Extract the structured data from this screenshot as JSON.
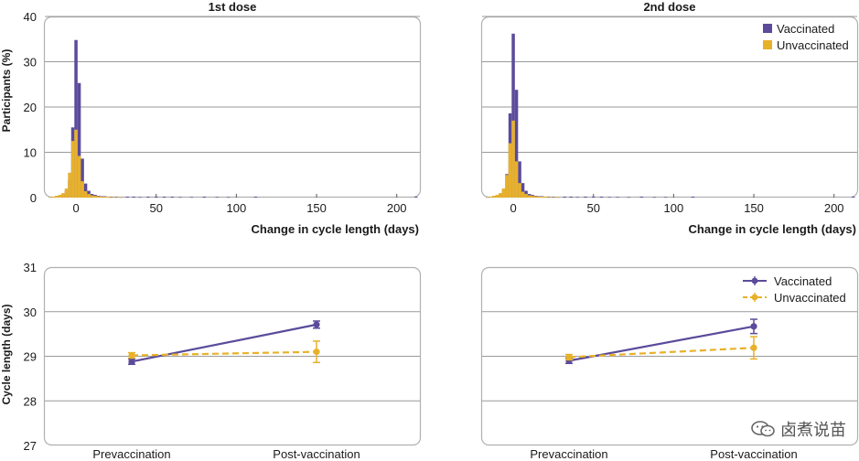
{
  "colors": {
    "vaccinated": "#5b4b9a",
    "unvaccinated": "#e8b12a",
    "grid": "#9a9a9a",
    "frame": "#b0b0b0"
  },
  "watermark": {
    "text": "卤煮说苗",
    "icon": "wechat-icon"
  },
  "chart_data": [
    {
      "type": "bar",
      "title": "1st dose",
      "xlabel": "Change in cycle length (days)",
      "ylabel": "Participants (%)",
      "xlim": [
        -20,
        215
      ],
      "ylim": [
        0,
        40
      ],
      "xticks": [
        0,
        50,
        100,
        150,
        200
      ],
      "yticks": [
        0,
        10,
        20,
        30,
        40
      ],
      "legend": "none",
      "grid": true,
      "bin_width": 2,
      "series": [
        {
          "name": "Vaccinated",
          "x": [
            -16,
            -14,
            -12,
            -10,
            -8,
            -6,
            -4,
            -2,
            0,
            2,
            4,
            6,
            8,
            10,
            12,
            14,
            16,
            18,
            20,
            22,
            25,
            28,
            32,
            36,
            40,
            45,
            50,
            55,
            60,
            65,
            72,
            80,
            88,
            95,
            112,
            212
          ],
          "y": [
            0.1,
            0.2,
            0.3,
            0.5,
            0.8,
            1.6,
            3.8,
            15.5,
            34.8,
            25.3,
            8.6,
            3.1,
            1.5,
            0.8,
            0.6,
            0.4,
            0.3,
            0.3,
            0.2,
            0.2,
            0.2,
            0.1,
            0.2,
            0.2,
            0.1,
            0.2,
            0.2,
            0.2,
            0.2,
            0.1,
            0.1,
            0.2,
            0.1,
            0.1,
            0.2,
            0.2
          ]
        },
        {
          "name": "Unvaccinated",
          "x": [
            -16,
            -14,
            -12,
            -10,
            -8,
            -6,
            -4,
            -2,
            0,
            2,
            4,
            6,
            8,
            10,
            12,
            14,
            16,
            18,
            20,
            22,
            25,
            28
          ],
          "y": [
            0.1,
            0.2,
            0.4,
            0.6,
            1.0,
            2.0,
            5.5,
            12.5,
            15.0,
            9.2,
            3.6,
            1.4,
            0.8,
            0.5,
            0.4,
            0.3,
            0.2,
            0.2,
            0.2,
            0.1,
            0.1,
            0.1
          ]
        }
      ]
    },
    {
      "type": "bar",
      "title": "2nd dose",
      "xlabel": "Change in cycle length (days)",
      "ylabel": "",
      "xlim": [
        -20,
        215
      ],
      "ylim": [
        0,
        40
      ],
      "xticks": [
        0,
        50,
        100,
        150,
        200
      ],
      "yticks": [
        0,
        10,
        20,
        30,
        40
      ],
      "legend": "top-right",
      "grid": true,
      "bin_width": 2,
      "series": [
        {
          "name": "Vaccinated",
          "x": [
            -16,
            -14,
            -12,
            -10,
            -8,
            -6,
            -4,
            -2,
            0,
            2,
            4,
            6,
            8,
            10,
            12,
            14,
            16,
            18,
            20,
            22,
            25,
            28,
            32,
            36,
            40,
            45,
            50,
            55,
            60,
            65,
            72,
            80,
            88,
            95,
            112,
            212
          ],
          "y": [
            0.1,
            0.2,
            0.3,
            0.5,
            0.9,
            1.8,
            5.2,
            18.6,
            36.2,
            23.8,
            8.0,
            3.2,
            1.5,
            0.8,
            0.6,
            0.4,
            0.3,
            0.3,
            0.2,
            0.2,
            0.2,
            0.1,
            0.2,
            0.2,
            0.1,
            0.2,
            0.2,
            0.2,
            0.1,
            0.1,
            0.1,
            0.2,
            0.1,
            0.1,
            0.2,
            0.2
          ]
        },
        {
          "name": "Unvaccinated",
          "x": [
            -16,
            -14,
            -12,
            -10,
            -8,
            -6,
            -4,
            -2,
            0,
            2,
            4,
            6,
            8,
            10,
            12,
            14,
            16,
            18,
            20,
            22,
            25,
            28
          ],
          "y": [
            0.1,
            0.2,
            0.4,
            0.6,
            1.0,
            2.0,
            5.0,
            12.0,
            17.0,
            8.0,
            3.2,
            1.3,
            0.8,
            0.5,
            0.4,
            0.3,
            0.2,
            0.2,
            0.2,
            0.1,
            0.1,
            0.1
          ]
        }
      ]
    },
    {
      "type": "line",
      "title": "",
      "xlabel": "",
      "ylabel": "Cycle length (days)",
      "categories": [
        "Prevaccination",
        "Post-vaccination"
      ],
      "ylim": [
        27,
        31
      ],
      "yticks": [
        27,
        28,
        29,
        30,
        31
      ],
      "legend": "none",
      "grid": true,
      "series": [
        {
          "name": "Vaccinated",
          "values": [
            28.88,
            29.71
          ],
          "errors": [
            0.06,
            0.08
          ],
          "dashed": false
        },
        {
          "name": "Unvaccinated",
          "values": [
            29.02,
            29.1
          ],
          "errors": [
            0.06,
            0.24
          ],
          "dashed": true
        }
      ]
    },
    {
      "type": "line",
      "title": "",
      "xlabel": "",
      "ylabel": "",
      "categories": [
        "Prevaccination",
        "Post-vaccination"
      ],
      "ylim": [
        27,
        31
      ],
      "yticks": [
        27,
        28,
        29,
        30,
        31
      ],
      "legend": "top-right",
      "grid": true,
      "series": [
        {
          "name": "Vaccinated",
          "values": [
            28.9,
            29.67
          ],
          "errors": [
            0.06,
            0.16
          ],
          "dashed": false
        },
        {
          "name": "Unvaccinated",
          "values": [
            28.98,
            29.19
          ],
          "errors": [
            0.06,
            0.25
          ],
          "dashed": true
        }
      ]
    }
  ]
}
